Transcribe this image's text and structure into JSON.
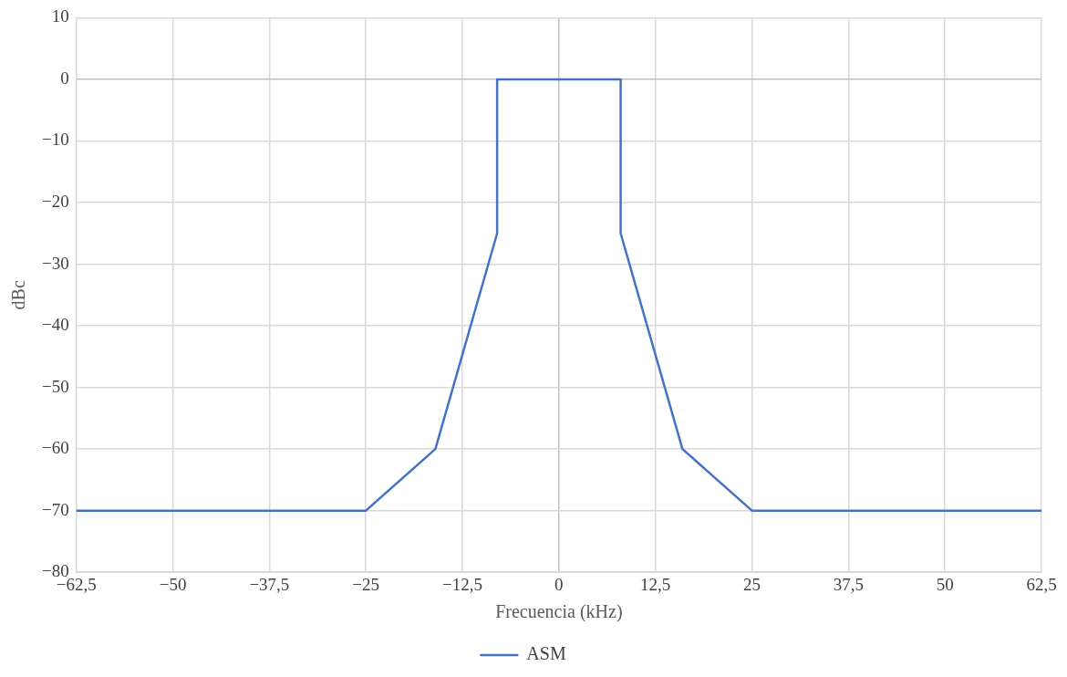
{
  "chart_data": {
    "type": "line",
    "xlabel": "Frecuencia (kHz)",
    "ylabel": "dBc",
    "xlim": [
      -62.5,
      62.5
    ],
    "xticks": [
      {
        "value": -62.5,
        "label": "−62,5"
      },
      {
        "value": -50,
        "label": "−50"
      },
      {
        "value": -37.5,
        "label": "−37,5"
      },
      {
        "value": -25,
        "label": "−25"
      },
      {
        "value": -12.5,
        "label": "−12,5"
      },
      0,
      {
        "value": 12.5,
        "label": "12,5"
      },
      25,
      {
        "value": 37.5,
        "label": "37,5"
      },
      50,
      {
        "value": 62.5,
        "label": "62,5"
      }
    ],
    "ylim": [
      -80,
      10
    ],
    "yticks": [
      {
        "value": -80,
        "label": "−80"
      },
      {
        "value": -70,
        "label": "−70"
      },
      {
        "value": -60,
        "label": "−60"
      },
      {
        "value": -50,
        "label": "−50"
      },
      {
        "value": -40,
        "label": "−40"
      },
      {
        "value": -30,
        "label": "−30"
      },
      {
        "value": -20,
        "label": "−20"
      },
      {
        "value": -10,
        "label": "−10"
      },
      0,
      10
    ],
    "grid": true,
    "legend": "bottom",
    "marker": "none",
    "line_style": "solid",
    "series": [
      {
        "name": "ASM",
        "color": "#4472c4",
        "x": [
          -62.5,
          -25,
          -16,
          -8,
          -8,
          8,
          8,
          16,
          25,
          62.5
        ],
        "values": [
          -70,
          -70,
          -60,
          -25,
          0,
          0,
          -25,
          -60,
          -70,
          -70
        ]
      }
    ]
  }
}
